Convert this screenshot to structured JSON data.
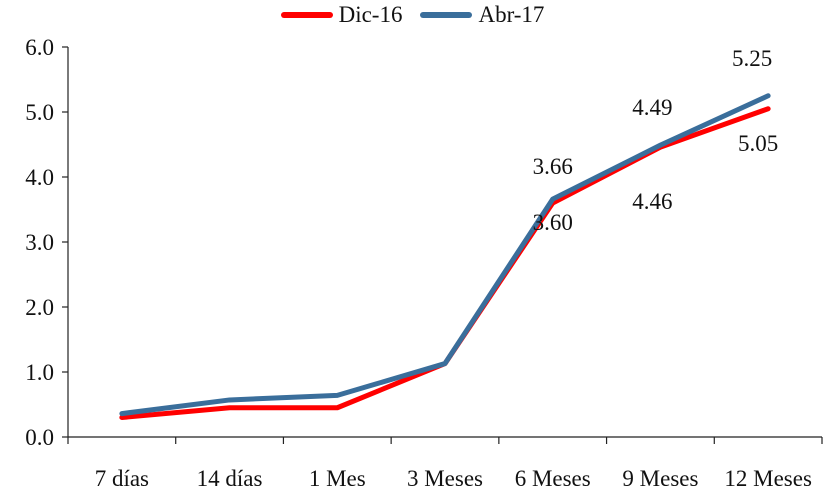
{
  "chart_data": {
    "type": "line",
    "title": "",
    "xlabel": "",
    "ylabel": "",
    "categories": [
      "7 días",
      "14 días",
      "1 Mes",
      "3 Meses",
      "6 Meses",
      "9 Meses",
      "12 Meses"
    ],
    "ylim": [
      0,
      6
    ],
    "yticks": [
      "0.0",
      "1.0",
      "2.0",
      "3.0",
      "4.0",
      "5.0",
      "6.0"
    ],
    "legend_position": "top-center",
    "grid": false,
    "series": [
      {
        "name": "Dic-16",
        "color": "#ff0000",
        "values": [
          0.3,
          0.45,
          0.45,
          1.13,
          3.6,
          4.46,
          5.05
        ],
        "labels": [
          "",
          "",
          "",
          "",
          "3.60",
          "4.46",
          "5.05"
        ]
      },
      {
        "name": "Abr-17",
        "color": "#3a6e9b",
        "values": [
          0.36,
          0.57,
          0.64,
          1.13,
          3.66,
          4.49,
          5.25
        ],
        "labels": [
          "",
          "",
          "",
          "",
          "3.66",
          "4.49",
          "5.25"
        ]
      }
    ]
  }
}
